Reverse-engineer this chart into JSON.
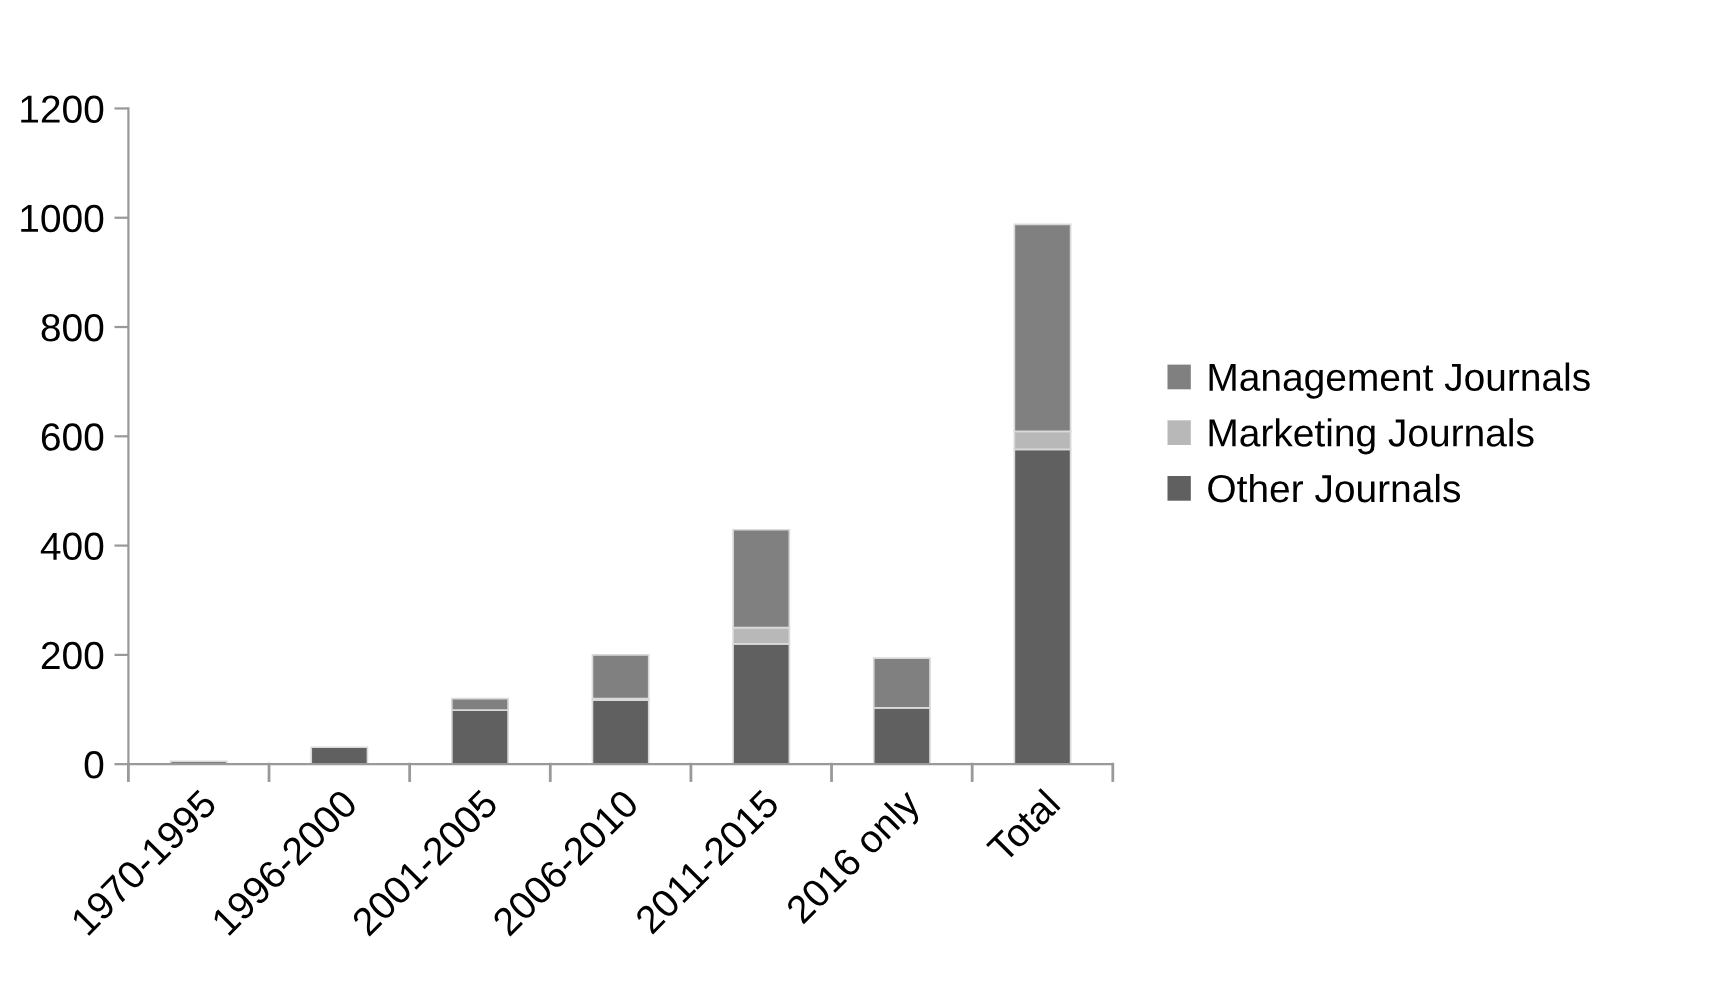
{
  "chart_data": {
    "type": "bar",
    "stacked": true,
    "categories": [
      "1970-1995",
      "1996-2000",
      "2001-2005",
      "2006-2010",
      "2011-2015",
      "2016 only",
      "Total"
    ],
    "series": [
      {
        "name": "Other Journals",
        "color": "#606060",
        "values": [
          5,
          31,
          99,
          117,
          220,
          103,
          576
        ]
      },
      {
        "name": "Marketing Journals",
        "color": "#b8b8b8",
        "values": [
          0,
          0,
          0,
          3,
          30,
          null,
          33
        ]
      },
      {
        "name": "Management Journals",
        "color": "#808080",
        "values": [
          0,
          0,
          21,
          80,
          179,
          91,
          379
        ]
      }
    ],
    "ylim": [
      0,
      1200
    ],
    "yticks": [
      0,
      200,
      400,
      600,
      800,
      1000,
      1200
    ],
    "grid": false,
    "legend": "right"
  }
}
